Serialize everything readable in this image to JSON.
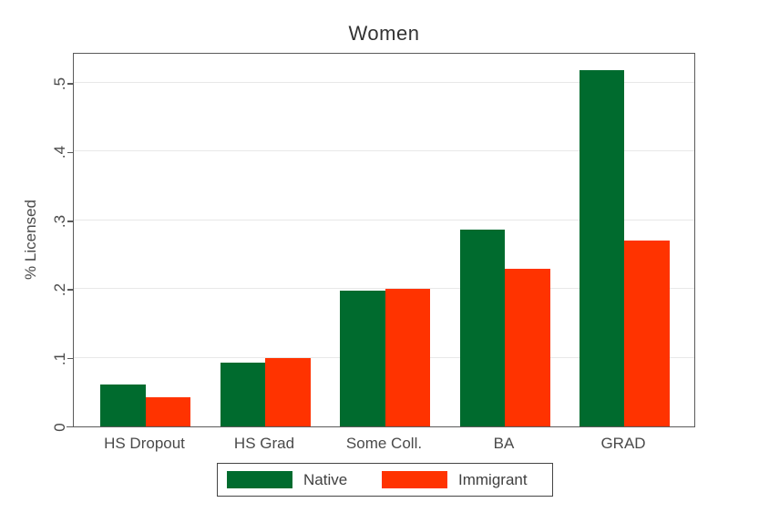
{
  "chart_data": {
    "type": "bar",
    "title": "Women",
    "ylabel": "% Licensed",
    "categories": [
      "HS Dropout",
      "HS Grad",
      "Some Coll.",
      "BA",
      "GRAD"
    ],
    "series": [
      {
        "name": "Native",
        "color": "#006B2E",
        "values": [
          0.061,
          0.093,
          0.197,
          0.287,
          0.519
        ]
      },
      {
        "name": "Immigrant",
        "color": "#FF3300",
        "values": [
          0.043,
          0.099,
          0.2,
          0.229,
          0.271
        ]
      }
    ],
    "ylim": [
      0,
      0.545
    ],
    "yticks": [
      0,
      0.1,
      0.2,
      0.3,
      0.4,
      0.5
    ],
    "ytick_labels": [
      "0",
      ".1",
      ".2",
      ".3",
      ".4",
      ".5"
    ],
    "grid": true,
    "legend_position": "bottom",
    "colors": {
      "axis": "#5a5a5a",
      "gridline": "#e8e8e8",
      "text": "#4a4a4a",
      "background": "#ffffff"
    }
  }
}
